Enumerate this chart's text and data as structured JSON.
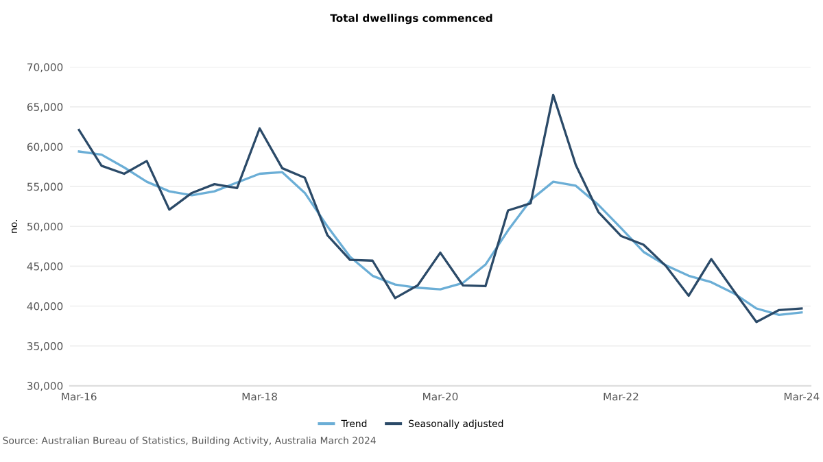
{
  "chart_data": {
    "type": "line",
    "title": "Total dwellings commenced",
    "ylabel": "no.",
    "categories": [
      "Mar-16",
      null,
      null,
      null,
      null,
      null,
      null,
      null,
      "Mar-18",
      null,
      null,
      null,
      null,
      null,
      null,
      null,
      "Mar-20",
      null,
      null,
      null,
      null,
      null,
      null,
      null,
      "Mar-22",
      null,
      null,
      null,
      null,
      null,
      null,
      null,
      "Mar-24"
    ],
    "series": [
      {
        "name": "Trend",
        "color": "#6baed6",
        "values": [
          59400,
          59000,
          57400,
          55600,
          54400,
          53900,
          54400,
          55500,
          56600,
          56800,
          54200,
          50000,
          46200,
          43800,
          42700,
          42300,
          42100,
          42900,
          45200,
          49500,
          53300,
          55600,
          55100,
          52700,
          49800,
          46800,
          45100,
          43800,
          43000,
          41600,
          39700,
          38900,
          39200
        ]
      },
      {
        "name": "Seasonally adjusted",
        "color": "#2b4a68",
        "values": [
          62100,
          57600,
          56600,
          58200,
          52100,
          54200,
          55300,
          54800,
          62300,
          57300,
          56100,
          48900,
          45800,
          45700,
          41000,
          42600,
          46700,
          42600,
          42500,
          52000,
          52900,
          66500,
          57700,
          51800,
          48800,
          47700,
          45000,
          41300,
          45900,
          41900,
          38000,
          39500,
          39700
        ]
      }
    ],
    "ylim": [
      30000,
      70000
    ],
    "yticks": [
      {
        "value": 30000,
        "label": "30,000"
      },
      {
        "value": 35000,
        "label": "35,000"
      },
      {
        "value": 40000,
        "label": "40,000"
      },
      {
        "value": 45000,
        "label": "45,000"
      },
      {
        "value": 50000,
        "label": "50,000"
      },
      {
        "value": 55000,
        "label": "55,000"
      },
      {
        "value": 60000,
        "label": "60,000"
      },
      {
        "value": 65000,
        "label": "65,000"
      },
      {
        "value": 70000,
        "label": "70,000"
      }
    ],
    "grid": "y",
    "legend": "bottom",
    "marker": "none",
    "line_style": "solid",
    "annotations": [
      "Source: Australian Bureau of Statistics, Building Activity, Australia March 2024"
    ]
  }
}
